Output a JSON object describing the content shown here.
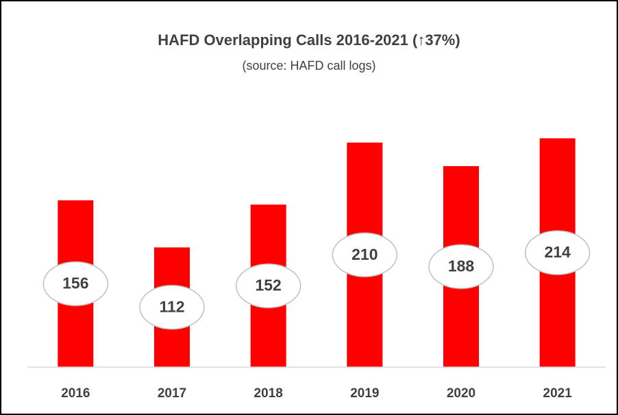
{
  "chart_data": {
    "type": "bar",
    "title": "HAFD Overlapping Calls 2016-2021  (↑37%)",
    "subtitle": "(source: HAFD call logs)",
    "categories": [
      "2016",
      "2017",
      "2018",
      "2019",
      "2020",
      "2021"
    ],
    "values": [
      156,
      112,
      152,
      210,
      188,
      214
    ],
    "color": "#ff0000",
    "ylim": [
      0,
      250
    ]
  }
}
